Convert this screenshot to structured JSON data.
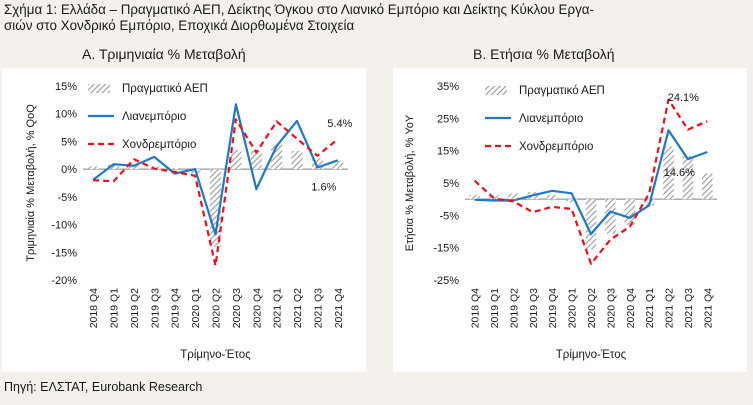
{
  "figure": {
    "title_line1": "Σχήμα 1: Ελλάδα – Πραγματικό ΑΕΠ, Δείκτης Όγκου στο Λιανικό Εμπόριο και Δείκτης Κύκλου Εργα-",
    "title_line2": "σιών στο Χονδρικό Εμπόριο, Εποχικά Διορθωμένα Στοιχεία",
    "source": "Πηγή: ΕΛΣΤΑΤ, Eurobank Research"
  },
  "colors": {
    "gdp": "#9a9a9a",
    "retail": "#1f78c8",
    "wholesale": "#e8111b"
  },
  "chart_data": [
    {
      "type": "bar+line",
      "panel_title": "Α. Τριμηνιαία % Μεταβολή",
      "ylabel": "Τριμηνιαία % Μεταβολή, % QoQ",
      "xlabel": "Τρίμηνο-Έτος",
      "ylim": [
        -20,
        15
      ],
      "yticks": [
        15,
        10,
        5,
        0,
        -5,
        -10,
        -15,
        -20
      ],
      "ytick_labels": [
        "15%",
        "10%",
        "5%",
        "0%",
        "-5%",
        "-10%",
        "-15%",
        "-20%"
      ],
      "categories": [
        "2018 Q4",
        "2019 Q1",
        "2019 Q2",
        "2019 Q3",
        "2019 Q4",
        "2020 Q1",
        "2020 Q2",
        "2020 Q3",
        "2020 Q4",
        "2021 Q1",
        "2021 Q2",
        "2021 Q3",
        "2021 Q4"
      ],
      "legend_position": "top-center",
      "series": [
        {
          "name": "Πραγματικό ΑΕΠ",
          "kind": "bar",
          "values": [
            0.5,
            0.8,
            0.9,
            0.5,
            0.2,
            -0.8,
            -14.0,
            3.5,
            3.3,
            4.4,
            3.3,
            2.0,
            1.5
          ]
        },
        {
          "name": "Λιανεμπόριο",
          "kind": "line",
          "values": [
            -1.9,
            0.9,
            0.6,
            2.2,
            -0.8,
            0.0,
            -11.8,
            11.7,
            -3.6,
            4.2,
            8.7,
            0.3,
            1.6
          ]
        },
        {
          "name": "Χονδρεμπόριο",
          "kind": "line-dashed",
          "values": [
            -2.0,
            -2.2,
            1.8,
            0.1,
            -0.5,
            -1.2,
            -17.4,
            9.0,
            3.0,
            8.6,
            5.5,
            2.4,
            5.4
          ]
        }
      ],
      "annotations": [
        {
          "text": "5.4%",
          "series": "Χονδρεμπόριο",
          "category": "2021 Q4"
        },
        {
          "text": "1.6%",
          "series": "Λιανεμπόριο",
          "category": "2021 Q4"
        }
      ]
    },
    {
      "type": "bar+line",
      "panel_title": "Β. Ετήσια % Μεταβολή",
      "ylabel": "Ετήσια % Μεταβολή, % YoY",
      "xlabel": "Τρίμηνο-Έτος",
      "ylim": [
        -25,
        35
      ],
      "yticks": [
        35,
        25,
        15,
        5,
        -5,
        -15,
        -25
      ],
      "ytick_labels": [
        "35%",
        "25%",
        "15%",
        "5%",
        "-5%",
        "-15%",
        "-25%"
      ],
      "categories": [
        "2018 Q4",
        "2019 Q1",
        "2019 Q2",
        "2019 Q3",
        "2019 Q4",
        "2020 Q1",
        "2020 Q2",
        "2020 Q3",
        "2020 Q4",
        "2021 Q1",
        "2021 Q2",
        "2021 Q3",
        "2021 Q4"
      ],
      "legend_position": "top-center",
      "series": [
        {
          "name": "Πραγματικό ΑΕΠ",
          "kind": "bar",
          "values": [
            1.3,
            1.2,
            1.8,
            2.2,
            1.3,
            -1.0,
            -15.5,
            -10.7,
            -8.0,
            -2.0,
            16.3,
            13.4,
            8.0
          ]
        },
        {
          "name": "Λιανεμπόριο",
          "kind": "line",
          "values": [
            -0.2,
            -0.4,
            -0.4,
            1.2,
            2.6,
            1.8,
            -10.8,
            -3.8,
            -5.8,
            -1.9,
            21.3,
            12.4,
            14.6
          ]
        },
        {
          "name": "Χονδρεμπόριο",
          "kind": "line-dashed",
          "values": [
            5.7,
            0.2,
            -0.7,
            -4.0,
            -2.4,
            -3.0,
            -20.0,
            -12.5,
            -8.5,
            1.8,
            30.8,
            21.5,
            24.1
          ]
        }
      ],
      "annotations": [
        {
          "text": "24.1%",
          "series": "Χονδρεμπόριο",
          "category": "2021 Q4"
        },
        {
          "text": "14.6%",
          "series": "Λιανεμπόριο",
          "category": "2021 Q4"
        }
      ]
    }
  ]
}
